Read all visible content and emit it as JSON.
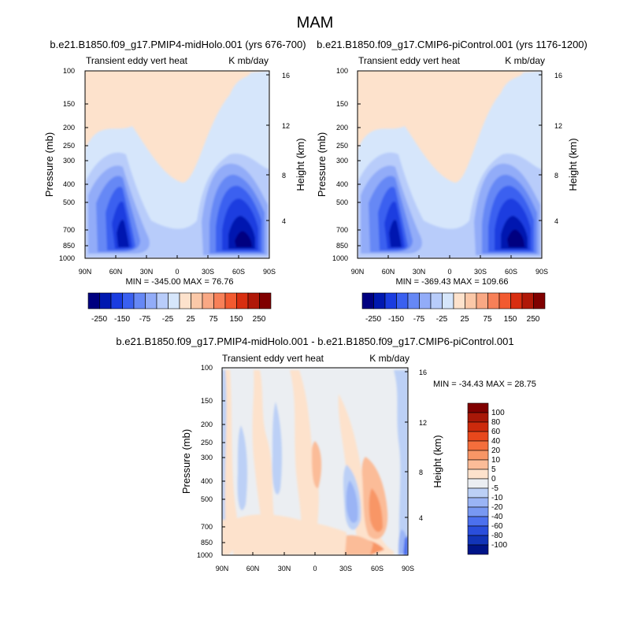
{
  "figure": {
    "title": "MAM"
  },
  "chart_data": [
    {
      "type": "contour",
      "title": "b.e21.B1850.f09_g17.PMIP4-midHolo.001 (yrs 676-700)",
      "left_label": "Transient eddy vert heat",
      "right_label": "K mb/day",
      "ylabel": "Pressure (mb)",
      "ylabel_right": "Height (km)",
      "x_ticks": [
        "90N",
        "60N",
        "30N",
        "0",
        "30S",
        "60S",
        "90S"
      ],
      "y_ticks": [
        "100",
        "150",
        "200",
        "250",
        "300",
        "400",
        "500",
        "700",
        "850",
        "1000"
      ],
      "height_ticks": [
        "16",
        "12",
        "8",
        "4"
      ],
      "ylim": [
        1000,
        100
      ],
      "min_max": "MIN = -345.00   MAX = 76.76",
      "labelbar": [
        "-250",
        "-150",
        "-75",
        "-25",
        "25",
        "75",
        "150",
        "250"
      ]
    },
    {
      "type": "contour",
      "title": "b.e21.B1850.f09_g17.CMIP6-piControl.001 (yrs 1176-1200)",
      "left_label": "Transient eddy vert heat",
      "right_label": "K mb/day",
      "ylabel": "Pressure (mb)",
      "ylabel_right": "Height (km)",
      "x_ticks": [
        "90N",
        "60N",
        "30N",
        "0",
        "30S",
        "60S",
        "90S"
      ],
      "y_ticks": [
        "100",
        "150",
        "200",
        "250",
        "300",
        "400",
        "500",
        "700",
        "850",
        "1000"
      ],
      "height_ticks": [
        "16",
        "12",
        "8",
        "4"
      ],
      "ylim": [
        1000,
        100
      ],
      "min_max": "MIN = -369.43   MAX = 109.66",
      "labelbar": [
        "-250",
        "-150",
        "-75",
        "-25",
        "25",
        "75",
        "150",
        "250"
      ]
    },
    {
      "type": "contour",
      "title": "b.e21.B1850.f09_g17.PMIP4-midHolo.001 - b.e21.B1850.f09_g17.CMIP6-piControl.001",
      "left_label": "Transient eddy vert heat",
      "right_label": "K mb/day",
      "ylabel": "Pressure (mb)",
      "ylabel_right": "Height (km)",
      "x_ticks": [
        "90N",
        "60N",
        "30N",
        "0",
        "30S",
        "60S",
        "90S"
      ],
      "y_ticks": [
        "100",
        "150",
        "200",
        "250",
        "300",
        "400",
        "500",
        "700",
        "850",
        "1000"
      ],
      "height_ticks": [
        "16",
        "12",
        "8",
        "4"
      ],
      "ylim": [
        1000,
        100
      ],
      "min_max": "MIN = -34.43   MAX =  28.75",
      "labelbar": [
        "100",
        "80",
        "60",
        "40",
        "20",
        "10",
        "5",
        "0",
        "-5",
        "-10",
        "-20",
        "-40",
        "-60",
        "-80",
        "-100"
      ]
    }
  ],
  "colors": {
    "abs_scale": [
      "#000080",
      "#0018b0",
      "#1a3ce0",
      "#3a60f0",
      "#6688f5",
      "#92acf8",
      "#b8ccfa",
      "#d6e6fb",
      "#fde2cc",
      "#fbc8a8",
      "#f9a884",
      "#f78058",
      "#f25a30",
      "#d82e10",
      "#b01808",
      "#800000"
    ],
    "diff_scale": [
      "#800000",
      "#a81808",
      "#cc2a0c",
      "#e8481c",
      "#f46e3c",
      "#f89666",
      "#fbbc98",
      "#fde2cc",
      "#ebeef2",
      "#bcd0f6",
      "#9ab4f5",
      "#7898f2",
      "#4c70ee",
      "#2a4edc",
      "#1234b8",
      "#001488"
    ]
  }
}
